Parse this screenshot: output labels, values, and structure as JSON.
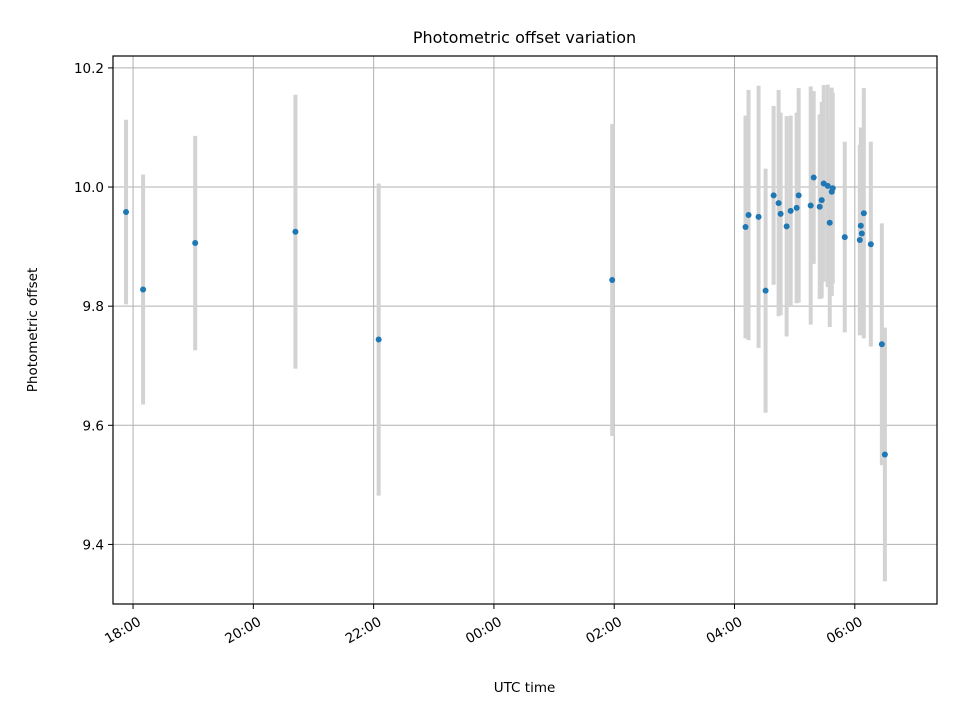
{
  "chart_data": {
    "type": "scatter",
    "title": "Photometric offset variation",
    "xlabel": "UTC time",
    "ylabel": "Photometric offset",
    "xlim": [
      "17:40",
      "07:22"
    ],
    "ylim": [
      9.3,
      10.22
    ],
    "x_ticks": [
      "18:00",
      "20:00",
      "22:00",
      "00:00",
      "02:00",
      "04:00",
      "06:00"
    ],
    "y_ticks": [
      "9.4",
      "9.6",
      "9.8",
      "10.0",
      "10.2"
    ],
    "grid": true,
    "legend": "none",
    "colors": {
      "point": "#1f77b4",
      "errorbar": "#d3d3d3",
      "grid": "#b0b0b0"
    },
    "points": [
      {
        "x": "17:53",
        "y": 9.958,
        "yerr": 0.155
      },
      {
        "x": "18:10",
        "y": 9.828,
        "yerr": 0.193
      },
      {
        "x": "19:02",
        "y": 9.906,
        "yerr": 0.18
      },
      {
        "x": "20:42",
        "y": 9.925,
        "yerr": 0.23
      },
      {
        "x": "22:05",
        "y": 9.744,
        "yerr": 0.262
      },
      {
        "x": "01:58",
        "y": 9.844,
        "yerr": 0.262
      },
      {
        "x": "04:11",
        "y": 9.933,
        "yerr": 0.187
      },
      {
        "x": "04:14",
        "y": 9.953,
        "yerr": 0.21
      },
      {
        "x": "04:24",
        "y": 9.95,
        "yerr": 0.22
      },
      {
        "x": "04:31",
        "y": 9.826,
        "yerr": 0.205
      },
      {
        "x": "04:39",
        "y": 9.986,
        "yerr": 0.15
      },
      {
        "x": "04:44",
        "y": 9.973,
        "yerr": 0.19
      },
      {
        "x": "04:46",
        "y": 9.955,
        "yerr": 0.17
      },
      {
        "x": "04:52",
        "y": 9.934,
        "yerr": 0.185
      },
      {
        "x": "04:56",
        "y": 9.96,
        "yerr": 0.16
      },
      {
        "x": "05:02",
        "y": 9.965,
        "yerr": 0.16
      },
      {
        "x": "05:04",
        "y": 9.986,
        "yerr": 0.18
      },
      {
        "x": "05:16",
        "y": 9.969,
        "yerr": 0.2
      },
      {
        "x": "05:19",
        "y": 10.016,
        "yerr": 0.145
      },
      {
        "x": "05:25",
        "y": 9.967,
        "yerr": 0.155
      },
      {
        "x": "05:27",
        "y": 9.978,
        "yerr": 0.165
      },
      {
        "x": "05:29",
        "y": 10.006,
        "yerr": 0.165
      },
      {
        "x": "05:33",
        "y": 10.002,
        "yerr": 0.17
      },
      {
        "x": "05:35",
        "y": 9.94,
        "yerr": 0.175
      },
      {
        "x": "05:37",
        "y": 9.992,
        "yerr": 0.175
      },
      {
        "x": "05:38",
        "y": 9.998,
        "yerr": 0.16
      },
      {
        "x": "05:50",
        "y": 9.916,
        "yerr": 0.16
      },
      {
        "x": "06:05",
        "y": 9.911,
        "yerr": 0.16
      },
      {
        "x": "06:06",
        "y": 9.935,
        "yerr": 0.165
      },
      {
        "x": "06:07",
        "y": 9.922,
        "yerr": 0.17
      },
      {
        "x": "06:09",
        "y": 9.956,
        "yerr": 0.21
      },
      {
        "x": "06:16",
        "y": 9.904,
        "yerr": 0.172
      },
      {
        "x": "06:27",
        "y": 9.736,
        "yerr": 0.203
      },
      {
        "x": "06:30",
        "y": 9.551,
        "yerr": 0.213
      }
    ]
  }
}
